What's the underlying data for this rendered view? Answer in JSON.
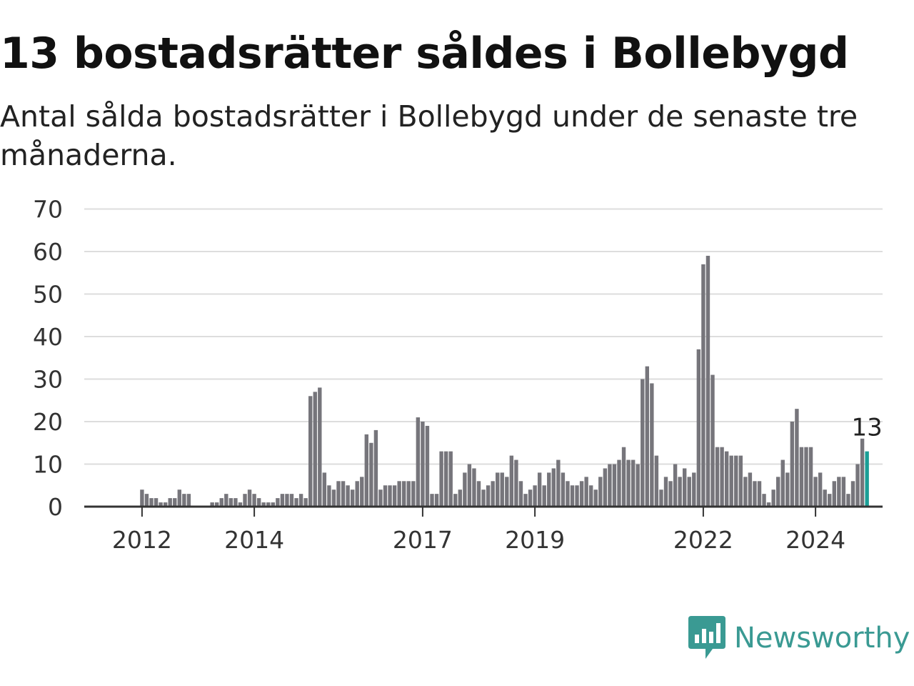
{
  "header": {
    "title": "13 bostadsrätter såldes i Bollebygd",
    "subtitle": "Antal sålda bostadsrätter i Bollebygd under de senaste tre månaderna."
  },
  "colors": {
    "bar": "#76757b",
    "highlight": "#1a9e96",
    "grid": "#dddddd",
    "axis": "#333333",
    "brand": "#3a9a93"
  },
  "brand": {
    "name": "Newsworthy",
    "icon": "bar-chart-bubble-icon"
  },
  "chart_data": {
    "type": "bar",
    "x_start": "2011-09",
    "x_end": "2024-10",
    "xlabel": "",
    "ylabel": "",
    "ylim": [
      0,
      70
    ],
    "yticks": [
      0,
      10,
      20,
      30,
      40,
      50,
      60,
      70
    ],
    "xticks": [
      {
        "label": "2012",
        "month": "2012-01"
      },
      {
        "label": "2014",
        "month": "2014-01"
      },
      {
        "label": "2017",
        "month": "2017-01"
      },
      {
        "label": "2019",
        "month": "2019-01"
      },
      {
        "label": "2022",
        "month": "2022-01"
      },
      {
        "label": "2024",
        "month": "2024-01"
      }
    ],
    "grid": true,
    "values": [
      0,
      0,
      0,
      0,
      4,
      3,
      2,
      2,
      1,
      1,
      2,
      2,
      4,
      3,
      3,
      0,
      0,
      0,
      0,
      1,
      1,
      2,
      3,
      2,
      2,
      1,
      3,
      4,
      3,
      2,
      1,
      1,
      1,
      2,
      3,
      3,
      3,
      2,
      3,
      2,
      26,
      27,
      28,
      8,
      5,
      4,
      6,
      6,
      5,
      4,
      6,
      7,
      17,
      15,
      18,
      4,
      5,
      5,
      5,
      6,
      6,
      6,
      6,
      21,
      20,
      19,
      3,
      3,
      13,
      13,
      13,
      3,
      4,
      8,
      10,
      9,
      6,
      4,
      5,
      6,
      8,
      8,
      7,
      12,
      11,
      6,
      3,
      4,
      5,
      8,
      5,
      8,
      9,
      11,
      8,
      6,
      5,
      5,
      6,
      7,
      5,
      4,
      7,
      9,
      10,
      10,
      11,
      14,
      11,
      11,
      10,
      30,
      33,
      29,
      12,
      4,
      7,
      6,
      10,
      7,
      9,
      7,
      8,
      37,
      57,
      59,
      31,
      14,
      14,
      13,
      12,
      12,
      12,
      7,
      8,
      6,
      6,
      3,
      1,
      4,
      7,
      11,
      8,
      20,
      23,
      14,
      14,
      14,
      7,
      8,
      4,
      3,
      6,
      7,
      7,
      3,
      6,
      10,
      16,
      13
    ],
    "highlight_last": true,
    "annotation": {
      "text": "13"
    }
  }
}
